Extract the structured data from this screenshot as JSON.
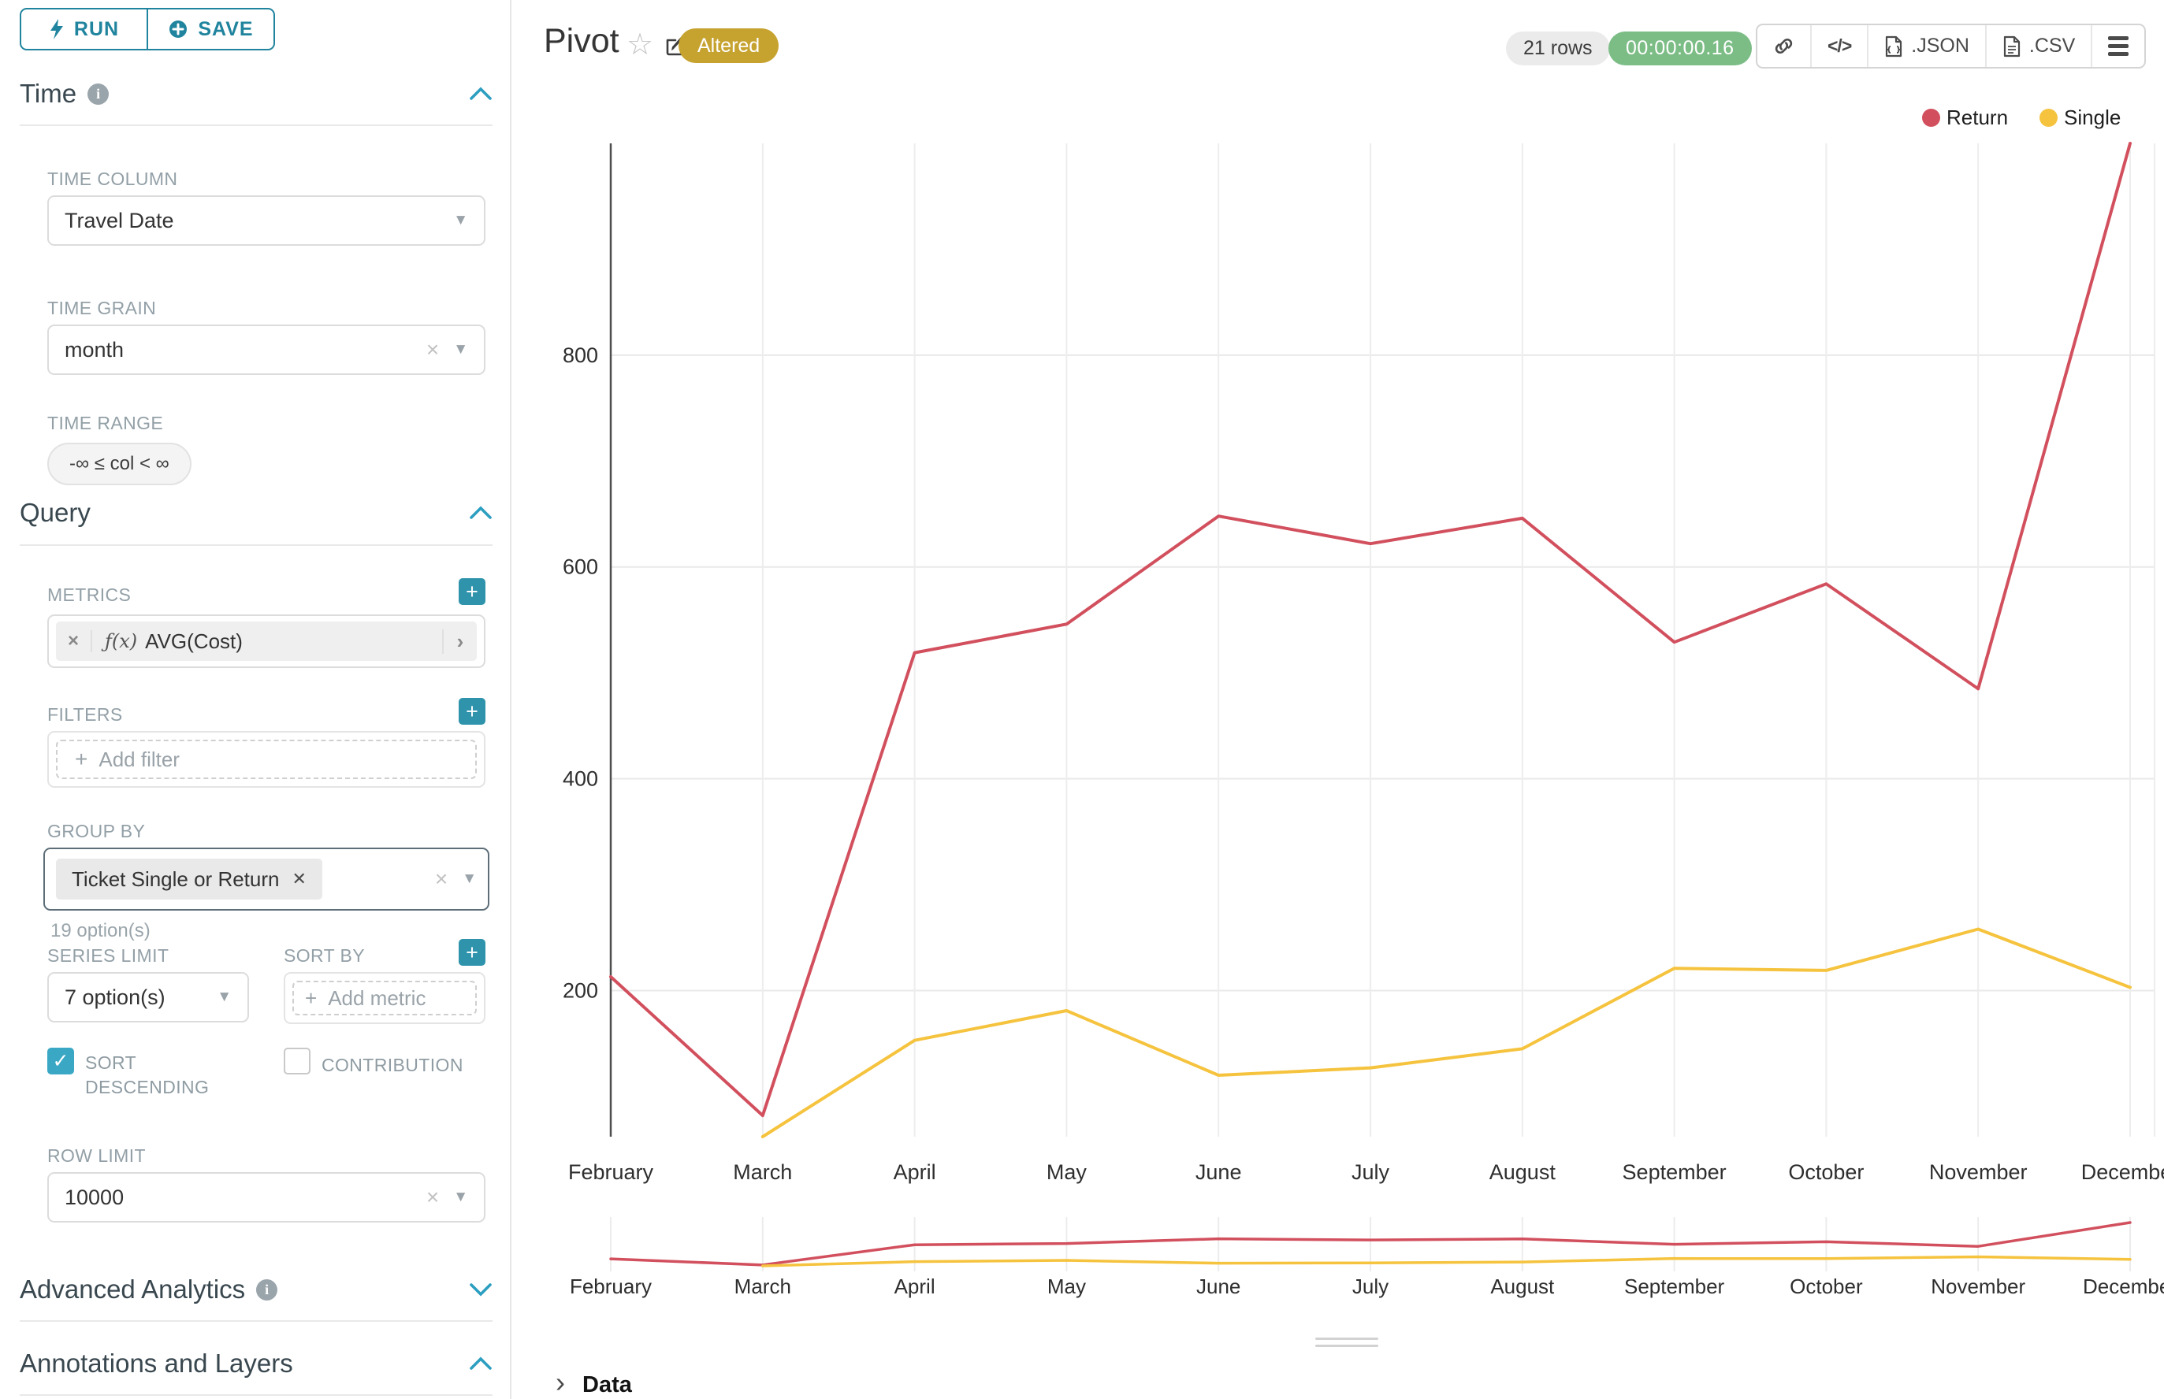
{
  "sidebar": {
    "run_label": "RUN",
    "save_label": "SAVE",
    "time_title": "Time",
    "time_column_label": "TIME COLUMN",
    "time_column_value": "Travel Date",
    "time_grain_label": "TIME GRAIN",
    "time_grain_value": "month",
    "time_range_label": "TIME RANGE",
    "time_range_value": "-∞ ≤ col < ∞",
    "query_title": "Query",
    "metrics_label": "METRICS",
    "metric_fx": "ƒ(x)",
    "metric_value": "AVG(Cost)",
    "filters_label": "FILTERS",
    "add_filter_label": "Add filter",
    "group_by_label": "GROUP BY",
    "group_by_chip": "Ticket Single or Return",
    "group_by_helper": "19 option(s)",
    "series_limit_label": "SERIES LIMIT",
    "series_limit_value": "7 option(s)",
    "sort_by_label": "SORT BY",
    "add_metric_label": "Add metric",
    "sort_descending_label": "SORT DESCENDING",
    "contribution_label": "CONTRIBUTION",
    "row_limit_label": "ROW LIMIT",
    "row_limit_value": "10000",
    "advanced_title": "Advanced Analytics",
    "annotations_title": "Annotations and Layers"
  },
  "header": {
    "title": "Pivot",
    "badge": "Altered",
    "rows_pill": "21 rows",
    "timer_pill": "00:00:00.16",
    "json_label": ".JSON",
    "csv_label": ".CSV"
  },
  "colors": {
    "accent_teal": "#20849e",
    "plus_teal": "#2e93ab",
    "checkbox_teal": "#3aa8c4",
    "badge_gold": "#c6a22f",
    "timer_green": "#7cbd86",
    "return_red": "#d2505e",
    "single_yellow": "#f5c33e"
  },
  "chart_data": {
    "type": "line",
    "title": "Pivot",
    "categories": [
      "February",
      "March",
      "April",
      "May",
      "June",
      "July",
      "August",
      "September",
      "October",
      "November",
      "December"
    ],
    "series": [
      {
        "name": "Return",
        "color": "#d2505e",
        "values": [
          213,
          82,
          519,
          546,
          648,
          622,
          646,
          529,
          584,
          485,
          1000
        ]
      },
      {
        "name": "Single",
        "color": "#f5c33e",
        "values": [
          null,
          62,
          153,
          181,
          120,
          127,
          145,
          221,
          219,
          258,
          203
        ]
      }
    ],
    "xlabel": "",
    "ylabel": "",
    "ylim": [
      62,
      1000
    ],
    "yticks": [
      200,
      400,
      600,
      800
    ],
    "grid": true,
    "legend_position": "top-right",
    "has_mini_zoom_chart": true
  },
  "data_panel": {
    "label": "Data"
  }
}
